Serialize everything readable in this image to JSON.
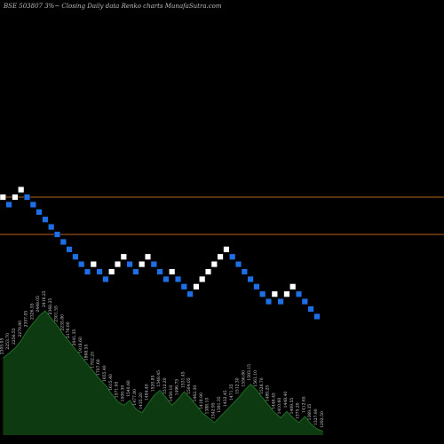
{
  "header": {
    "title": "BSE 503807 3%~  Closing Daily data  Renko  charts MunafaSutra.com"
  },
  "colors": {
    "background": "#000000",
    "up_brick": "#ffffff",
    "down_brick": "#1e6fe6",
    "reference_line": "#b5651d",
    "volume_fill": "#0e3a12",
    "volume_outline": "#1f6b24",
    "label_text": "#d8d8d8"
  },
  "chart_data": {
    "type": "renko",
    "title": "BSE 503807 3%~  Closing Daily data  Renko  charts MunafaSutra.com",
    "brick_size_percent": 3,
    "grid": false,
    "reference_lines": [
      {
        "name": "upper",
        "level": 0.0
      },
      {
        "name": "lower",
        "level": -5.0
      }
    ],
    "bricks": [
      {
        "dir": "up",
        "level": 0
      },
      {
        "dir": "down",
        "level": -1
      },
      {
        "dir": "up",
        "level": 0
      },
      {
        "dir": "up",
        "level": 1
      },
      {
        "dir": "down",
        "level": 0
      },
      {
        "dir": "down",
        "level": -1
      },
      {
        "dir": "down",
        "level": -2
      },
      {
        "dir": "down",
        "level": -3
      },
      {
        "dir": "down",
        "level": -4
      },
      {
        "dir": "down",
        "level": -5
      },
      {
        "dir": "down",
        "level": -6
      },
      {
        "dir": "down",
        "level": -7
      },
      {
        "dir": "down",
        "level": -8
      },
      {
        "dir": "down",
        "level": -9
      },
      {
        "dir": "down",
        "level": -10
      },
      {
        "dir": "up",
        "level": -9
      },
      {
        "dir": "down",
        "level": -10
      },
      {
        "dir": "down",
        "level": -11
      },
      {
        "dir": "up",
        "level": -10
      },
      {
        "dir": "up",
        "level": -9
      },
      {
        "dir": "up",
        "level": -8
      },
      {
        "dir": "down",
        "level": -9
      },
      {
        "dir": "down",
        "level": -10
      },
      {
        "dir": "up",
        "level": -9
      },
      {
        "dir": "up",
        "level": -8
      },
      {
        "dir": "down",
        "level": -9
      },
      {
        "dir": "down",
        "level": -10
      },
      {
        "dir": "down",
        "level": -11
      },
      {
        "dir": "up",
        "level": -10
      },
      {
        "dir": "down",
        "level": -11
      },
      {
        "dir": "down",
        "level": -12
      },
      {
        "dir": "down",
        "level": -13
      },
      {
        "dir": "up",
        "level": -12
      },
      {
        "dir": "up",
        "level": -11
      },
      {
        "dir": "up",
        "level": -10
      },
      {
        "dir": "up",
        "level": -9
      },
      {
        "dir": "up",
        "level": -8
      },
      {
        "dir": "up",
        "level": -7
      },
      {
        "dir": "down",
        "level": -8
      },
      {
        "dir": "down",
        "level": -9
      },
      {
        "dir": "down",
        "level": -10
      },
      {
        "dir": "down",
        "level": -11
      },
      {
        "dir": "down",
        "level": -12
      },
      {
        "dir": "down",
        "level": -13
      },
      {
        "dir": "down",
        "level": -14
      },
      {
        "dir": "up",
        "level": -13
      },
      {
        "dir": "down",
        "level": -14
      },
      {
        "dir": "up",
        "level": -13
      },
      {
        "dir": "up",
        "level": -12
      },
      {
        "dir": "down",
        "level": -13
      },
      {
        "dir": "down",
        "level": -14
      },
      {
        "dir": "down",
        "level": -15
      },
      {
        "dir": "down",
        "level": -16
      }
    ],
    "volume": [
      {
        "label": "2305.05",
        "value": 0.62
      },
      {
        "label": "2253.70",
        "value": 0.66
      },
      {
        "label": "2256.55",
        "value": 0.7
      },
      {
        "label": "2279.80",
        "value": 0.76
      },
      {
        "label": "2357.05",
        "value": 0.84
      },
      {
        "label": "2326.55",
        "value": 0.9
      },
      {
        "label": "2448.05",
        "value": 0.96
      },
      {
        "label": "2416.25",
        "value": 1.0
      },
      {
        "label": "2368.25",
        "value": 0.94
      },
      {
        "label": "2301.55",
        "value": 0.88
      },
      {
        "label": "2235.80",
        "value": 0.81
      },
      {
        "label": "2176.00",
        "value": 0.75
      },
      {
        "label": "2041.35",
        "value": 0.69
      },
      {
        "label": "1918.60",
        "value": 0.63
      },
      {
        "label": "1868.55",
        "value": 0.57
      },
      {
        "label": "1782.25",
        "value": 0.51
      },
      {
        "label": "1707.60",
        "value": 0.45
      },
      {
        "label": "1655.40",
        "value": 0.4
      },
      {
        "label": "1615.40",
        "value": 0.33
      },
      {
        "label": "1571.95",
        "value": 0.27
      },
      {
        "label": "1509.30",
        "value": 0.24
      },
      {
        "label": "1540.60",
        "value": 0.28
      },
      {
        "label": "1477.80",
        "value": 0.21
      },
      {
        "label": "1435.20",
        "value": 0.18
      },
      {
        "label": "1484.40",
        "value": 0.25
      },
      {
        "label": "1520.85",
        "value": 0.32
      },
      {
        "label": "1548.45",
        "value": 0.36
      },
      {
        "label": "1512.20",
        "value": 0.3
      },
      {
        "label": "1459.10",
        "value": 0.24
      },
      {
        "label": "1496.75",
        "value": 0.29
      },
      {
        "label": "1531.45",
        "value": 0.35
      },
      {
        "label": "1504.05",
        "value": 0.3
      },
      {
        "label": "1462.30",
        "value": 0.24
      },
      {
        "label": "1418.90",
        "value": 0.18
      },
      {
        "label": "1388.10",
        "value": 0.14
      },
      {
        "label": "1342.95",
        "value": 0.1
      },
      {
        "label": "1391.35",
        "value": 0.15
      },
      {
        "label": "1432.45",
        "value": 0.2
      },
      {
        "label": "1471.35",
        "value": 0.25
      },
      {
        "label": "1512.30",
        "value": 0.3
      },
      {
        "label": "1556.80",
        "value": 0.36
      },
      {
        "label": "1593.15",
        "value": 0.41
      },
      {
        "label": "1561.10",
        "value": 0.36
      },
      {
        "label": "1528.70",
        "value": 0.3
      },
      {
        "label": "1489.25",
        "value": 0.24
      },
      {
        "label": "1446.45",
        "value": 0.18
      },
      {
        "label": "1410.60",
        "value": 0.14
      },
      {
        "label": "1448.40",
        "value": 0.19
      },
      {
        "label": "1409.55",
        "value": 0.14
      },
      {
        "label": "1375.20",
        "value": 0.1
      },
      {
        "label": "1412.65",
        "value": 0.15
      },
      {
        "label": "1369.35",
        "value": 0.09
      },
      {
        "label": "1327.90",
        "value": 0.05
      },
      {
        "label": "1292.50",
        "value": 0.03
      }
    ]
  }
}
